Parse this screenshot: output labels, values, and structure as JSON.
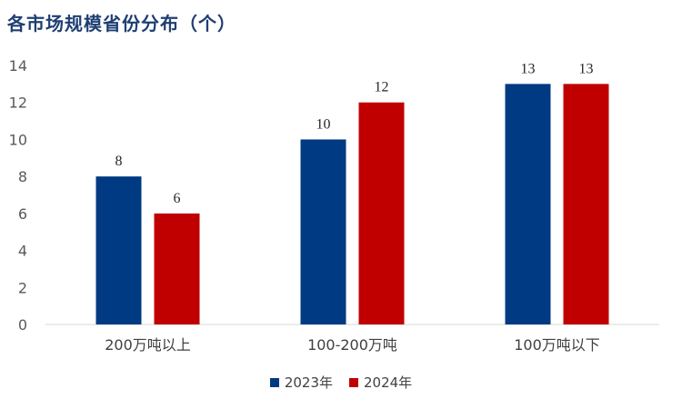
{
  "chart_data": {
    "type": "bar",
    "title": "各市场规模省份分布（个）",
    "categories": [
      "200万吨以上",
      "100-200万吨",
      "100万吨以下"
    ],
    "series": [
      {
        "name": "2023年",
        "color": "#003a82",
        "values": [
          8,
          10,
          13
        ]
      },
      {
        "name": "2024年",
        "color": "#c00000",
        "values": [
          6,
          12,
          13
        ]
      }
    ],
    "ylim": [
      0,
      14
    ],
    "yticks": [
      "0",
      "2",
      "4",
      "6",
      "8",
      "10",
      "12",
      "14"
    ],
    "grid": false,
    "legend_position": "bottom",
    "xlabel": "",
    "ylabel": ""
  }
}
